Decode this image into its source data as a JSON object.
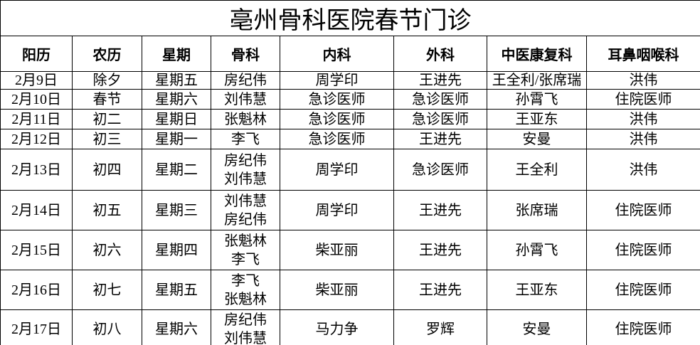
{
  "title": "亳州骨科医院春节门诊",
  "table": {
    "headers": [
      "阳历",
      "农历",
      "星期",
      "骨科",
      "内科",
      "外科",
      "中医康复科",
      "耳鼻咽喉科"
    ],
    "rows": [
      [
        "2月9日",
        "除夕",
        "星期五",
        "房纪伟",
        "周学印",
        "王进先",
        "王全利/张席瑞",
        "洪伟"
      ],
      [
        "2月10日",
        "春节",
        "星期六",
        "刘伟慧",
        "急诊医师",
        "急诊医师",
        "孙霄飞",
        "住院医师"
      ],
      [
        "2月11日",
        "初二",
        "星期日",
        "张魁林",
        "急诊医师",
        "急诊医师",
        "王亚东",
        "洪伟"
      ],
      [
        "2月12日",
        "初三",
        "星期一",
        "李飞",
        "急诊医师",
        "王进先",
        "安曼",
        "洪伟"
      ],
      [
        "2月13日",
        "初四",
        "星期二",
        [
          "房纪伟",
          "刘伟慧"
        ],
        "周学印",
        "急诊医师",
        "王全利",
        "洪伟"
      ],
      [
        "2月14日",
        "初五",
        "星期三",
        [
          "刘伟慧",
          "房纪伟"
        ],
        "周学印",
        "王进先",
        "张席瑞",
        "住院医师"
      ],
      [
        "2月15日",
        "初六",
        "星期四",
        [
          "张魁林",
          "李飞"
        ],
        "柴亚丽",
        "王进先",
        "孙霄飞",
        "住院医师"
      ],
      [
        "2月16日",
        "初七",
        "星期五",
        [
          "李飞",
          "张魁林"
        ],
        "柴亚丽",
        "王进先",
        "王亚东",
        "住院医师"
      ],
      [
        "2月17日",
        "初八",
        "星期六",
        [
          "房纪伟",
          "刘伟慧"
        ],
        "马力争",
        "罗辉",
        "安曼",
        "住院医师"
      ]
    ]
  }
}
